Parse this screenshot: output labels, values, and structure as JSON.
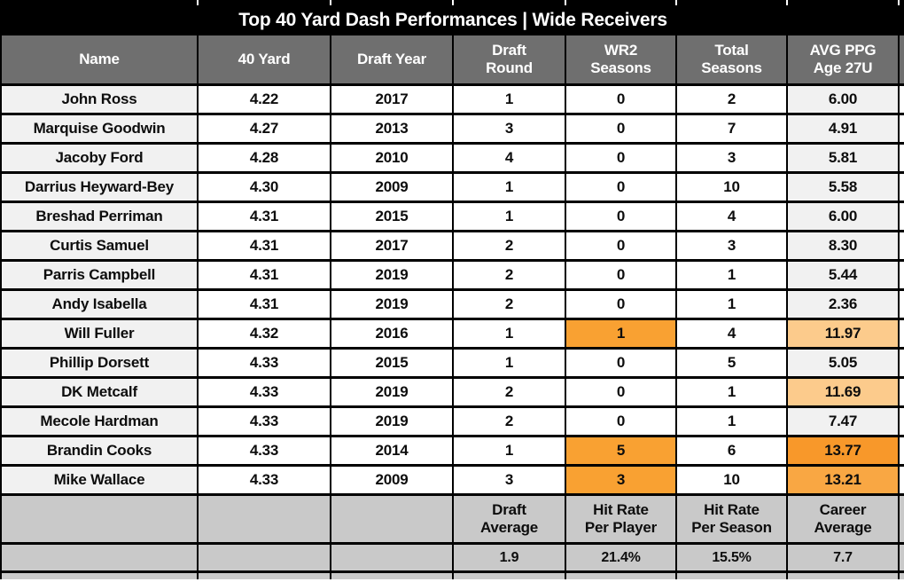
{
  "colors": {
    "title_bg": "#000000",
    "header_bg": "#6F6F6F",
    "name_col_bg": "#F1F1F1",
    "footer_bg": "#C9C9C9",
    "border": "#000000",
    "hit_orange": "#F9A132",
    "ppg_orange_strong": "#F8982A",
    "ppg_orange_mid": "#F9A743",
    "ppg_orange_light": "#FCCB8C"
  },
  "chart_data": {
    "type": "table",
    "title": "Top 40 Yard Dash Performances | Wide Receivers",
    "columns": [
      {
        "lines": [
          "Name"
        ]
      },
      {
        "lines": [
          "40 Yard"
        ]
      },
      {
        "lines": [
          "Draft Year"
        ]
      },
      {
        "lines": [
          "Draft",
          "Round"
        ]
      },
      {
        "lines": [
          "WR2",
          "Seasons"
        ]
      },
      {
        "lines": [
          "Total",
          "Seasons"
        ]
      },
      {
        "lines": [
          "AVG PPG",
          "Age 27U"
        ]
      }
    ],
    "rows": [
      {
        "name": "John Ross",
        "forty": "4.22",
        "year": "2017",
        "round": "1",
        "wr2": "0",
        "total": "2",
        "ppg": "6.00",
        "wr2_bg": null,
        "ppg_bg": null
      },
      {
        "name": "Marquise Goodwin",
        "forty": "4.27",
        "year": "2013",
        "round": "3",
        "wr2": "0",
        "total": "7",
        "ppg": "4.91",
        "wr2_bg": null,
        "ppg_bg": null
      },
      {
        "name": "Jacoby Ford",
        "forty": "4.28",
        "year": "2010",
        "round": "4",
        "wr2": "0",
        "total": "3",
        "ppg": "5.81",
        "wr2_bg": null,
        "ppg_bg": null
      },
      {
        "name": "Darrius Heyward-Bey",
        "forty": "4.30",
        "year": "2009",
        "round": "1",
        "wr2": "0",
        "total": "10",
        "ppg": "5.58",
        "wr2_bg": null,
        "ppg_bg": null
      },
      {
        "name": "Breshad Perriman",
        "forty": "4.31",
        "year": "2015",
        "round": "1",
        "wr2": "0",
        "total": "4",
        "ppg": "6.00",
        "wr2_bg": null,
        "ppg_bg": null
      },
      {
        "name": "Curtis Samuel",
        "forty": "4.31",
        "year": "2017",
        "round": "2",
        "wr2": "0",
        "total": "3",
        "ppg": "8.30",
        "wr2_bg": null,
        "ppg_bg": null
      },
      {
        "name": "Parris Campbell",
        "forty": "4.31",
        "year": "2019",
        "round": "2",
        "wr2": "0",
        "total": "1",
        "ppg": "5.44",
        "wr2_bg": null,
        "ppg_bg": null
      },
      {
        "name": "Andy Isabella",
        "forty": "4.31",
        "year": "2019",
        "round": "2",
        "wr2": "0",
        "total": "1",
        "ppg": "2.36",
        "wr2_bg": null,
        "ppg_bg": null
      },
      {
        "name": "Will Fuller",
        "forty": "4.32",
        "year": "2016",
        "round": "1",
        "wr2": "1",
        "total": "4",
        "ppg": "11.97",
        "wr2_bg": "#F9A132",
        "ppg_bg": "#FCCB8C"
      },
      {
        "name": "Phillip Dorsett",
        "forty": "4.33",
        "year": "2015",
        "round": "1",
        "wr2": "0",
        "total": "5",
        "ppg": "5.05",
        "wr2_bg": null,
        "ppg_bg": null
      },
      {
        "name": "DK Metcalf",
        "forty": "4.33",
        "year": "2019",
        "round": "2",
        "wr2": "0",
        "total": "1",
        "ppg": "11.69",
        "wr2_bg": null,
        "ppg_bg": "#FCCB8C"
      },
      {
        "name": "Mecole Hardman",
        "forty": "4.33",
        "year": "2019",
        "round": "2",
        "wr2": "0",
        "total": "1",
        "ppg": "7.47",
        "wr2_bg": null,
        "ppg_bg": null
      },
      {
        "name": "Brandin Cooks",
        "forty": "4.33",
        "year": "2014",
        "round": "1",
        "wr2": "5",
        "total": "6",
        "ppg": "13.77",
        "wr2_bg": "#F9A132",
        "ppg_bg": "#F8982A"
      },
      {
        "name": "Mike Wallace",
        "forty": "4.33",
        "year": "2009",
        "round": "3",
        "wr2": "3",
        "total": "10",
        "ppg": "13.21",
        "wr2_bg": "#F9A132",
        "ppg_bg": "#F9A743"
      }
    ],
    "footer": {
      "labels": [
        {
          "lines": [
            "Draft",
            "Average"
          ]
        },
        {
          "lines": [
            "Hit Rate",
            "Per Player"
          ]
        },
        {
          "lines": [
            "Hit Rate",
            "Per Season"
          ]
        },
        {
          "lines": [
            "Career",
            "Average"
          ]
        }
      ],
      "values": [
        "1.9",
        "21.4%",
        "15.5%",
        "7.7"
      ]
    }
  }
}
